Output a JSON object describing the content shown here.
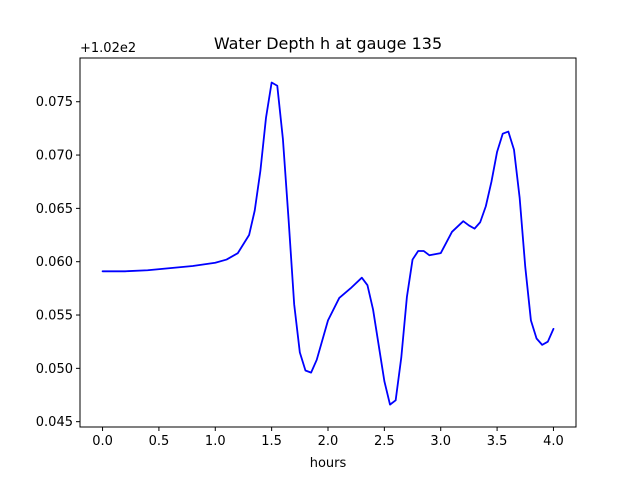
{
  "chart_data": {
    "type": "line",
    "title": "Water Depth h at gauge 135",
    "xlabel": "hours",
    "ylabel": "",
    "offset_text": "+1.02e2",
    "y_offset": 102,
    "xlim": [
      -0.2,
      4.2
    ],
    "ylim": [
      0.0445,
      0.0791
    ],
    "x_ticks": [
      0.0,
      0.5,
      1.0,
      1.5,
      2.0,
      2.5,
      3.0,
      3.5,
      4.0
    ],
    "x_tick_labels": [
      "0.0",
      "0.5",
      "1.0",
      "1.5",
      "2.0",
      "2.5",
      "3.0",
      "3.5",
      "4.0"
    ],
    "y_ticks": [
      0.045,
      0.05,
      0.055,
      0.06,
      0.065,
      0.07,
      0.075
    ],
    "y_tick_labels": [
      "0.045",
      "0.050",
      "0.055",
      "0.060",
      "0.065",
      "0.070",
      "0.075"
    ],
    "grid": false,
    "legend": "none",
    "series": [
      {
        "color": "#0000ff",
        "x": [
          0.0,
          0.2,
          0.4,
          0.6,
          0.8,
          1.0,
          1.1,
          1.2,
          1.3,
          1.35,
          1.4,
          1.45,
          1.5,
          1.55,
          1.6,
          1.65,
          1.7,
          1.75,
          1.8,
          1.85,
          1.9,
          2.0,
          2.1,
          2.2,
          2.3,
          2.35,
          2.4,
          2.5,
          2.55,
          2.6,
          2.65,
          2.7,
          2.75,
          2.8,
          2.85,
          2.9,
          3.0,
          3.1,
          3.2,
          3.25,
          3.3,
          3.35,
          3.4,
          3.45,
          3.5,
          3.55,
          3.6,
          3.65,
          3.7,
          3.75,
          3.8,
          3.85,
          3.9,
          3.95,
          4.0
        ],
        "y": [
          0.0591,
          0.0591,
          0.0592,
          0.0594,
          0.0596,
          0.0599,
          0.0602,
          0.0608,
          0.0625,
          0.0648,
          0.0685,
          0.0735,
          0.0768,
          0.0765,
          0.0715,
          0.064,
          0.056,
          0.0515,
          0.0498,
          0.0496,
          0.0508,
          0.0545,
          0.0566,
          0.0575,
          0.0585,
          0.0578,
          0.0555,
          0.0488,
          0.0466,
          0.047,
          0.051,
          0.0567,
          0.0602,
          0.061,
          0.061,
          0.0606,
          0.0608,
          0.0628,
          0.0638,
          0.0634,
          0.0631,
          0.0637,
          0.0652,
          0.0675,
          0.0703,
          0.072,
          0.0722,
          0.0705,
          0.066,
          0.0595,
          0.0545,
          0.0528,
          0.0522,
          0.0525,
          0.0537
        ]
      }
    ]
  }
}
